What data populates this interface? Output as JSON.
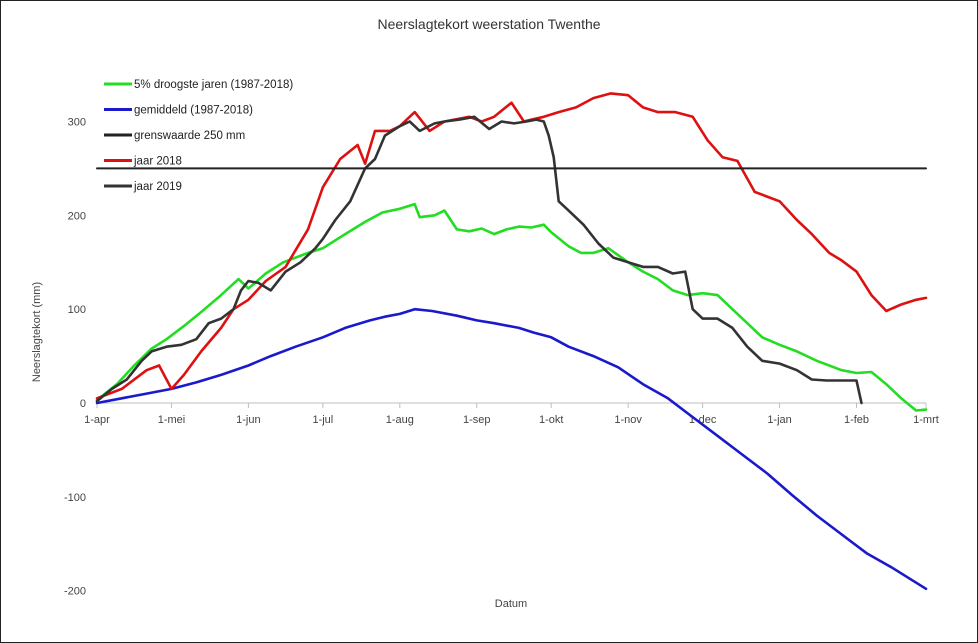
{
  "chart_data": {
    "type": "line",
    "title": "Neerslagtekort weerstation Twenthe",
    "xlabel": "Datum",
    "ylabel": "Neerslagtekort (mm)",
    "ylim": [
      -200,
      340
    ],
    "yticks": [
      -200,
      -100,
      0,
      100,
      200,
      300
    ],
    "x_range": [
      "1-apr",
      "1-mrt"
    ],
    "x_tick_labels": [
      "1-apr",
      "1-mei",
      "1-jun",
      "1-jul",
      "1-aug",
      "1-sep",
      "1-okt",
      "1-nov",
      "1-dec",
      "1-jan",
      "1-feb",
      "1-mrt"
    ],
    "x_tick_day_of_season": [
      0,
      30,
      61,
      91,
      122,
      153,
      183,
      214,
      244,
      275,
      306,
      334
    ],
    "grid": false,
    "legend_position": "top-left",
    "series": [
      {
        "name": "5% droogste jaren (1987-2018)",
        "color": "#22dd22",
        "x": [
          0,
          8,
          15,
          22,
          28,
          35,
          42,
          50,
          57,
          61,
          68,
          75,
          80,
          85,
          91,
          100,
          108,
          115,
          122,
          128,
          130,
          136,
          140,
          145,
          150,
          155,
          160,
          165,
          170,
          175,
          180,
          183,
          190,
          195,
          200,
          206,
          214,
          220,
          226,
          232,
          238,
          244,
          250,
          256,
          262,
          268,
          275,
          282,
          290,
          300,
          306,
          312,
          318,
          324,
          330,
          334
        ],
        "values": [
          3,
          20,
          40,
          58,
          68,
          82,
          97,
          115,
          132,
          122,
          138,
          150,
          155,
          160,
          165,
          180,
          193,
          203,
          207,
          212,
          198,
          200,
          205,
          185,
          183,
          186,
          180,
          185,
          188,
          187,
          190,
          182,
          167,
          160,
          160,
          165,
          150,
          140,
          132,
          120,
          115,
          117,
          115,
          100,
          85,
          70,
          62,
          55,
          45,
          35,
          32,
          33,
          20,
          5,
          -8,
          -7
        ]
      },
      {
        "name": "gemiddeld (1987-2018)",
        "color": "#1a1acc",
        "x": [
          0,
          10,
          20,
          30,
          40,
          50,
          61,
          70,
          80,
          91,
          100,
          110,
          116,
          122,
          128,
          135,
          145,
          153,
          160,
          170,
          176,
          183,
          190,
          200,
          210,
          220,
          230,
          240,
          250,
          260,
          270,
          280,
          290,
          300,
          310,
          320,
          334
        ],
        "values": [
          0,
          5,
          10,
          15,
          22,
          30,
          40,
          50,
          60,
          70,
          80,
          88,
          92,
          95,
          100,
          98,
          93,
          88,
          85,
          80,
          75,
          70,
          60,
          50,
          38,
          20,
          5,
          -15,
          -35,
          -55,
          -75,
          -98,
          -120,
          -140,
          -160,
          -175,
          -198
        ]
      },
      {
        "name": "grenswaarde 250 mm",
        "color": "#222222",
        "x": [
          0,
          334
        ],
        "values": [
          250,
          250
        ]
      },
      {
        "name": "jaar 2018",
        "color": "#dd1111",
        "x": [
          0,
          10,
          20,
          25,
          30,
          35,
          42,
          50,
          55,
          61,
          68,
          76,
          85,
          91,
          98,
          105,
          108,
          112,
          118,
          122,
          128,
          134,
          140,
          150,
          155,
          160,
          167,
          172,
          175,
          180,
          186,
          193,
          200,
          207,
          214,
          220,
          226,
          233,
          240,
          246,
          252,
          258,
          265,
          270,
          275,
          282,
          288,
          295,
          300,
          306,
          312,
          318,
          324,
          330,
          334
        ],
        "values": [
          5,
          15,
          35,
          40,
          15,
          30,
          55,
          80,
          100,
          110,
          130,
          145,
          185,
          230,
          260,
          275,
          255,
          290,
          290,
          295,
          310,
          290,
          300,
          305,
          300,
          305,
          320,
          300,
          302,
          305,
          310,
          315,
          325,
          330,
          328,
          315,
          310,
          310,
          305,
          280,
          262,
          258,
          225,
          220,
          215,
          195,
          180,
          160,
          152,
          140,
          115,
          98,
          105,
          110,
          112
        ]
      },
      {
        "name": "jaar 2019",
        "color": "#333333",
        "x": [
          0,
          6,
          12,
          18,
          22,
          28,
          34,
          40,
          45,
          50,
          55,
          58,
          61,
          65,
          70,
          76,
          82,
          88,
          91,
          96,
          102,
          108,
          112,
          116,
          122,
          126,
          130,
          136,
          140,
          146,
          152,
          158,
          163,
          168,
          173,
          177,
          180,
          182,
          184,
          186,
          190,
          196,
          202,
          208,
          214,
          220,
          226,
          232,
          237,
          240,
          244,
          250,
          256,
          262,
          268,
          275,
          282,
          288,
          294,
          300,
          306,
          308
        ],
        "values": [
          2,
          15,
          25,
          45,
          55,
          60,
          62,
          68,
          85,
          90,
          100,
          120,
          130,
          128,
          120,
          140,
          150,
          165,
          175,
          195,
          215,
          250,
          260,
          285,
          295,
          300,
          290,
          298,
          300,
          302,
          305,
          292,
          300,
          298,
          300,
          302,
          300,
          285,
          262,
          215,
          205,
          190,
          170,
          155,
          150,
          145,
          145,
          138,
          140,
          100,
          90,
          90,
          80,
          60,
          45,
          42,
          35,
          25,
          24,
          24,
          24,
          0
        ]
      }
    ]
  }
}
